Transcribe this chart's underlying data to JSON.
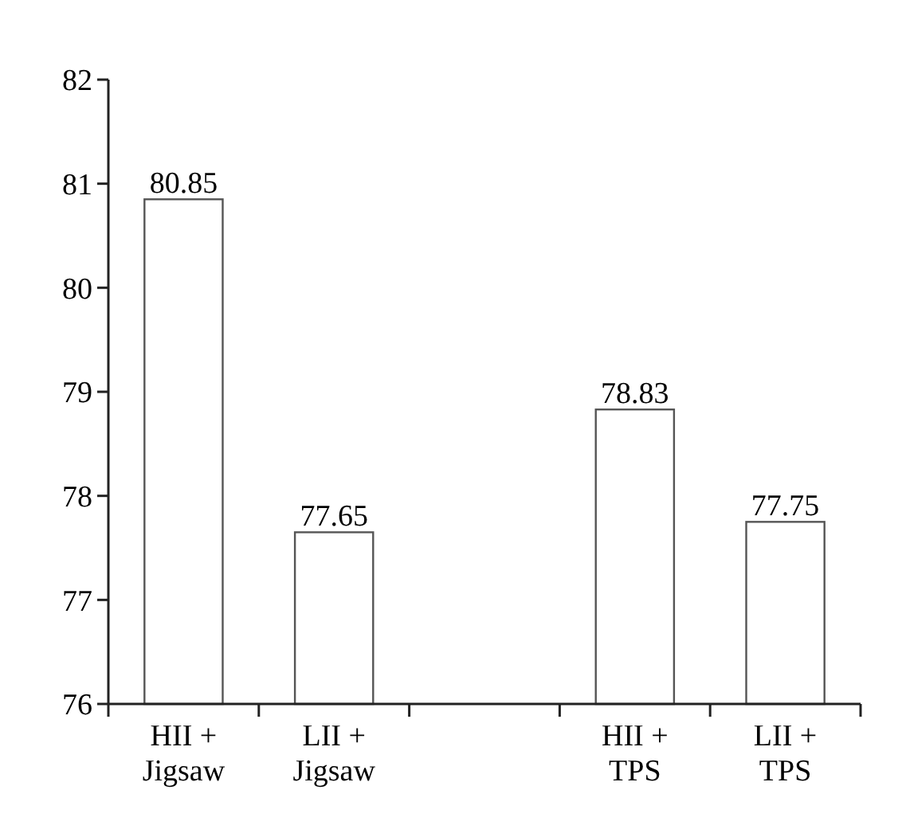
{
  "chart_data": {
    "type": "bar",
    "categories": [
      "HII + Jigsaw",
      "LII + Jigsaw",
      null,
      "HII + TPS",
      "LII + TPS"
    ],
    "values": [
      80.85,
      77.65,
      null,
      78.83,
      77.75
    ],
    "color": "#ffffff",
    "ylim": [
      76,
      82
    ],
    "yticks": [
      76,
      77,
      78,
      79,
      80,
      81,
      82
    ],
    "data_labels": true,
    "grid": false
  }
}
